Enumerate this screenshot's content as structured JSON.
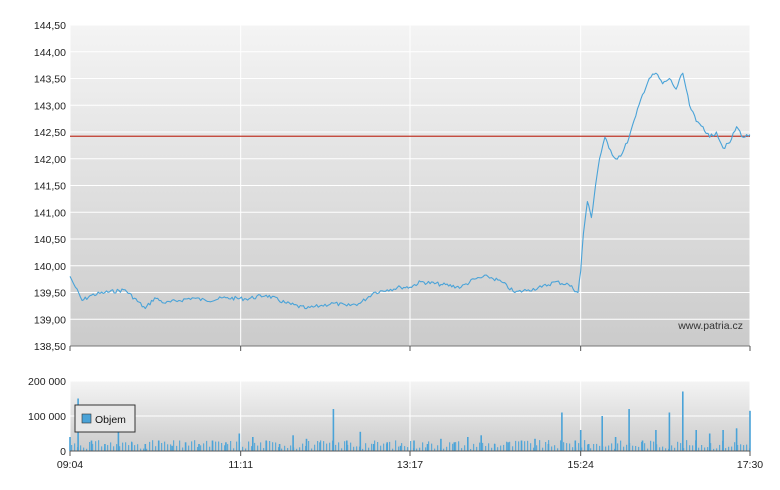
{
  "chart_data": [
    {
      "type": "line",
      "watermark": "www.patria.cz",
      "ylim": [
        138.5,
        144.5
      ],
      "yticks": [
        "144,50",
        "144,00",
        "143,50",
        "143,00",
        "142,50",
        "142,00",
        "141,50",
        "141,00",
        "140,50",
        "140,00",
        "139,50",
        "139,00",
        "138,50"
      ],
      "xticks": [
        "09:04",
        "11:11",
        "13:17",
        "15:24",
        "17:30"
      ],
      "reference_line": 142.42,
      "series": [
        {
          "color": "#4aa3d8",
          "x": [
            "09:04",
            "09:08",
            "09:13",
            "09:20",
            "09:30",
            "09:45",
            "10:00",
            "10:07",
            "10:15",
            "10:25",
            "10:35",
            "10:45",
            "11:00",
            "11:15",
            "11:30",
            "11:45",
            "12:00",
            "12:10",
            "12:20",
            "12:30",
            "12:40",
            "12:50",
            "13:00",
            "13:10",
            "13:17",
            "13:25",
            "13:40",
            "13:55",
            "14:05",
            "14:15",
            "14:25",
            "14:35",
            "14:45",
            "14:55",
            "15:05",
            "15:15",
            "15:22",
            "15:24",
            "15:26",
            "15:29",
            "15:32",
            "15:35",
            "15:38",
            "15:42",
            "15:45",
            "15:50",
            "15:55",
            "16:00",
            "16:05",
            "16:10",
            "16:15",
            "16:20",
            "16:25",
            "16:30",
            "16:35",
            "16:40",
            "16:45",
            "16:50",
            "16:55",
            "17:00",
            "17:05",
            "17:10",
            "17:15",
            "17:20",
            "17:25",
            "17:30"
          ],
          "y": [
            139.8,
            139.6,
            139.35,
            139.45,
            139.5,
            139.55,
            139.2,
            139.4,
            139.3,
            139.35,
            139.4,
            139.35,
            139.4,
            139.38,
            139.45,
            139.3,
            139.2,
            139.25,
            139.3,
            139.25,
            139.3,
            139.5,
            139.55,
            139.6,
            139.6,
            139.7,
            139.65,
            139.6,
            139.75,
            139.8,
            139.7,
            139.5,
            139.55,
            139.6,
            139.7,
            139.65,
            139.5,
            139.9,
            140.6,
            141.2,
            140.9,
            141.5,
            142.0,
            142.4,
            142.2,
            142.0,
            142.1,
            142.4,
            142.8,
            143.2,
            143.5,
            143.6,
            143.4,
            143.5,
            143.3,
            143.6,
            143.0,
            142.7,
            142.6,
            142.4,
            142.5,
            142.2,
            142.3,
            142.6,
            142.4,
            142.45
          ]
        }
      ]
    },
    {
      "type": "bar",
      "ylim": [
        0,
        200000
      ],
      "yticks": [
        "200 000",
        "100 000",
        "0"
      ],
      "xticks": [
        "09:04",
        "11:11",
        "13:17",
        "15:24",
        "17:30"
      ],
      "legend": "Objem",
      "legend_position": "left",
      "series": [
        {
          "name": "Objem",
          "color": "#4aa3d8",
          "x": [
            "09:04",
            "09:10",
            "09:20",
            "09:30",
            "09:40",
            "09:50",
            "10:00",
            "10:10",
            "10:20",
            "10:30",
            "10:40",
            "10:50",
            "11:00",
            "11:10",
            "11:20",
            "11:30",
            "11:40",
            "11:50",
            "12:00",
            "12:10",
            "12:20",
            "12:30",
            "12:40",
            "12:50",
            "13:00",
            "13:10",
            "13:20",
            "13:30",
            "13:40",
            "13:50",
            "14:00",
            "14:10",
            "14:20",
            "14:30",
            "14:40",
            "14:50",
            "15:00",
            "15:10",
            "15:20",
            "15:24",
            "15:30",
            "15:40",
            "15:50",
            "16:00",
            "16:10",
            "16:20",
            "16:30",
            "16:40",
            "16:50",
            "17:00",
            "17:10",
            "17:20",
            "17:30"
          ],
          "values": [
            40000,
            150000,
            30000,
            20000,
            60000,
            25000,
            20000,
            30000,
            15000,
            25000,
            20000,
            30000,
            25000,
            50000,
            40000,
            30000,
            20000,
            45000,
            35000,
            25000,
            120000,
            30000,
            55000,
            20000,
            25000,
            15000,
            30000,
            20000,
            35000,
            25000,
            40000,
            45000,
            20000,
            25000,
            30000,
            35000,
            20000,
            110000,
            30000,
            60000,
            20000,
            100000,
            40000,
            120000,
            30000,
            60000,
            110000,
            170000,
            60000,
            50000,
            60000,
            65000,
            115000
          ]
        }
      ]
    }
  ]
}
